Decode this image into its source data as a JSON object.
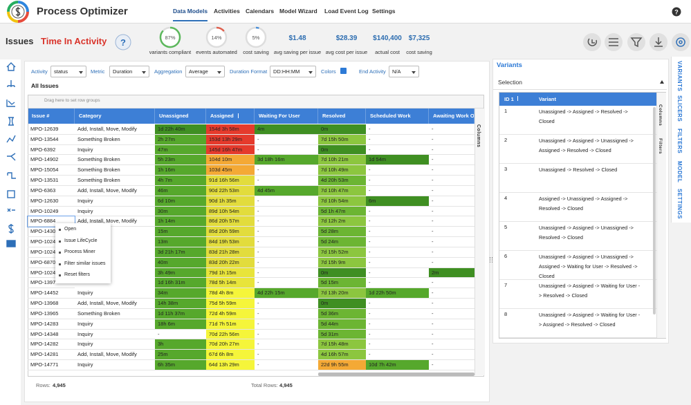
{
  "nav": {
    "app_title": "Process Optimizer",
    "items": [
      "Data Models",
      "Activities",
      "Calendars",
      "Model Wizard",
      "Load Event Log",
      "Settings"
    ]
  },
  "header": {
    "page": "Issues",
    "view": "Time In Activity",
    "gauges": [
      {
        "value": 87,
        "value_label": "87%",
        "label": "variants compliant",
        "color": "#5cb85c"
      },
      {
        "value": 14,
        "value_label": "14%",
        "label": "events automated",
        "color": "#e0604e"
      },
      {
        "value": 5,
        "value_label": "5%",
        "label": "cost saving",
        "color": "#4a8fd8"
      }
    ],
    "kpis": [
      {
        "value": "$1.48",
        "label": "avg saving per issue"
      },
      {
        "value": "$28.39",
        "label": "avg cost per issue"
      },
      {
        "value": "$140,400",
        "label": "actual cost"
      },
      {
        "value": "$7,325",
        "label": "cost saving"
      }
    ]
  },
  "controls": [
    {
      "label": "Activity",
      "value": "status"
    },
    {
      "label": "Metric",
      "value": "Duration"
    },
    {
      "label": "Aggregation",
      "value": "Average"
    },
    {
      "label": "Duration Format",
      "value": "DD:HH:MM"
    },
    {
      "label": "Colors",
      "checked": true
    },
    {
      "label": "End Activity",
      "value": "N/A"
    }
  ],
  "table": {
    "title": "All Issues",
    "group_hint": "Drag here to set row groups",
    "side_tab": "Columns",
    "columns": [
      "Issue #",
      "Category",
      "Unassigned",
      "Assigned",
      "Waiting For User",
      "Resolved",
      "Scheduled Work",
      "Awaiting Work Ord"
    ],
    "rows": [
      [
        "MPO-12639",
        "Add, Install, Move, Modify",
        {
          "text": "1d 22h 40m",
          "color": "#3f8f22"
        },
        {
          "text": "154d 3h 58m",
          "color": "#e53a2c"
        },
        {
          "text": "4m",
          "color": "#3f8f22"
        },
        {
          "text": "0m",
          "color": "#3f8f22"
        },
        "-",
        "-"
      ],
      [
        "MPO-13544",
        "Something Broken",
        {
          "text": "2h 27m",
          "color": "#56a82c"
        },
        {
          "text": "153d 13h 29m",
          "color": "#e53a2c"
        },
        "-",
        {
          "text": "7d 15h 50m",
          "color": "#8cc63f"
        },
        "-",
        "-"
      ],
      [
        "MPO-6392",
        "Inquiry",
        {
          "text": "47m",
          "color": "#56a82c"
        },
        {
          "text": "145d 16h 47m",
          "color": "#e53a2c"
        },
        "-",
        {
          "text": "0m",
          "color": "#3f8f22"
        },
        "-",
        "-"
      ],
      [
        "MPO-14902",
        "Something Broken",
        {
          "text": "5h 23m",
          "color": "#56a82c"
        },
        {
          "text": "104d 10m",
          "color": "#f4a935"
        },
        {
          "text": "3d 18h 16m",
          "color": "#56a82c"
        },
        {
          "text": "7d 10h 21m",
          "color": "#8cc63f"
        },
        {
          "text": "1d 54m",
          "color": "#3f8f22"
        },
        "-"
      ],
      [
        "MPO-15054",
        "Something Broken",
        {
          "text": "1h 16m",
          "color": "#56a82c"
        },
        {
          "text": "103d 45m",
          "color": "#f4a935"
        },
        "-",
        {
          "text": "7d 10h 49m",
          "color": "#8cc63f"
        },
        "-",
        "-"
      ],
      [
        "MPO-13531",
        "Something Broken",
        {
          "text": "4h 7m",
          "color": "#56a82c"
        },
        {
          "text": "91d 16h 56m",
          "color": "#e2dc3c"
        },
        "-",
        {
          "text": "4d 20h 53m",
          "color": "#6cb533"
        },
        "-",
        "-"
      ],
      [
        "MPO-6363",
        "Add, Install, Move, Modify",
        {
          "text": "46m",
          "color": "#56a82c"
        },
        {
          "text": "90d 22h 53m",
          "color": "#e2dc3c"
        },
        {
          "text": "4d 45m",
          "color": "#56a82c"
        },
        {
          "text": "7d 10h 47m",
          "color": "#8cc63f"
        },
        "-",
        "-"
      ],
      [
        "MPO-12630",
        "Inquiry",
        {
          "text": "6d 10m",
          "color": "#56a82c"
        },
        {
          "text": "90d 1h 35m",
          "color": "#e2dc3c"
        },
        "-",
        {
          "text": "7d 10h 54m",
          "color": "#8cc63f"
        },
        {
          "text": "6m",
          "color": "#3f8f22"
        },
        "-"
      ],
      [
        "MPO-10249",
        "Inquiry",
        {
          "text": "30m",
          "color": "#56a82c"
        },
        {
          "text": "89d 10h 54m",
          "color": "#e2dc3c"
        },
        "-",
        {
          "text": "5d 1h 47m",
          "color": "#6cb533"
        },
        "-",
        "-"
      ],
      [
        "MPO-6884",
        "Add, Install, Move, Modify",
        {
          "text": "1h 14m",
          "color": "#56a82c"
        },
        {
          "text": "86d 20h 57m",
          "color": "#e2dc3c"
        },
        "-",
        {
          "text": "7d 12h 2m",
          "color": "#8cc63f"
        },
        "-",
        "-"
      ],
      [
        "MPO-1430",
        null,
        {
          "text": "15m",
          "color": "#56a82c"
        },
        {
          "text": "85d 20h 59m",
          "color": "#e2dc3c"
        },
        "-",
        {
          "text": "5d 28m",
          "color": "#6cb533"
        },
        "-",
        "-"
      ],
      [
        "MPO-1024",
        null,
        {
          "text": "13m",
          "color": "#56a82c"
        },
        {
          "text": "84d 19h 53m",
          "color": "#e2dc3c"
        },
        "-",
        {
          "text": "5d 24m",
          "color": "#6cb533"
        },
        "-",
        "-"
      ],
      [
        "MPO-1024",
        null,
        {
          "text": "3d 21h 17m",
          "color": "#56a82c"
        },
        {
          "text": "83d 21h 28m",
          "color": "#e2dc3c"
        },
        "-",
        {
          "text": "7d 15h 52m",
          "color": "#8cc63f"
        },
        "-",
        "-"
      ],
      [
        "MPO-6870",
        null,
        {
          "text": "40m",
          "color": "#56a82c"
        },
        {
          "text": "83d 20h 22m",
          "color": "#e2dc3c"
        },
        "-",
        {
          "text": "7d 15h 9m",
          "color": "#8cc63f"
        },
        "-",
        "-"
      ],
      [
        "MPO-1024",
        null,
        {
          "text": "3h 49m",
          "color": "#56a82c"
        },
        {
          "text": "79d 1h 15m",
          "color": "#e8e43a"
        },
        "-",
        {
          "text": "0m",
          "color": "#3f8f22"
        },
        "-",
        {
          "text": "2m",
          "color": "#3f8f22"
        }
      ],
      [
        "MPO-1397",
        null,
        {
          "text": "1d 16h 31m",
          "color": "#56a82c"
        },
        {
          "text": "78d 5h 14m",
          "color": "#e8e43a"
        },
        "-",
        {
          "text": "5d 15m",
          "color": "#6cb533"
        },
        "-",
        "-"
      ],
      [
        "MPO-14452",
        "Inquiry",
        {
          "text": "34m",
          "color": "#56a82c"
        },
        {
          "text": "78d 4h 8m",
          "color": "#f5f53a"
        },
        {
          "text": "4d 22h 15m",
          "color": "#56a82c"
        },
        {
          "text": "7d 13h 20m",
          "color": "#8cc63f"
        },
        {
          "text": "1d 22h 50m",
          "color": "#56a82c"
        },
        "-"
      ],
      [
        "MPO-13968",
        "Add, Install, Move, Modify",
        {
          "text": "14h 38m",
          "color": "#56a82c"
        },
        {
          "text": "75d 5h 59m",
          "color": "#f5f53a"
        },
        "-",
        {
          "text": "0m",
          "color": "#3f8f22"
        },
        "-",
        "-"
      ],
      [
        "MPO-13965",
        "Something Broken",
        {
          "text": "1d 11h 37m",
          "color": "#56a82c"
        },
        {
          "text": "72d 4h 59m",
          "color": "#f5f53a"
        },
        "-",
        {
          "text": "5d 36m",
          "color": "#6cb533"
        },
        "-",
        "-"
      ],
      [
        "MPO-14283",
        "Inquiry",
        {
          "text": "18h 6m",
          "color": "#56a82c"
        },
        {
          "text": "71d 7h 51m",
          "color": "#f5f53a"
        },
        "-",
        {
          "text": "5d 44m",
          "color": "#6cb533"
        },
        "-",
        "-"
      ],
      [
        "MPO-14348",
        "Inquiry",
        "-",
        {
          "text": "70d 22h 56m",
          "color": "#f5f53a"
        },
        "-",
        {
          "text": "5d 31m",
          "color": "#6cb533"
        },
        "-",
        "-"
      ],
      [
        "MPO-14282",
        "Inquiry",
        {
          "text": "3h",
          "color": "#56a82c"
        },
        {
          "text": "70d 20h 27m",
          "color": "#f5f53a"
        },
        "-",
        {
          "text": "7d 15h 48m",
          "color": "#8cc63f"
        },
        "-",
        "-"
      ],
      [
        "MPO-14281",
        "Add, Install, Move, Modify",
        {
          "text": "25m",
          "color": "#56a82c"
        },
        {
          "text": "67d 6h 8m",
          "color": "#f5f53a"
        },
        "-",
        {
          "text": "4d 16h 57m",
          "color": "#8cc63f"
        },
        "-",
        "-"
      ],
      [
        "MPO-14771",
        "Inquiry",
        {
          "text": "6h 35m",
          "color": "#56a82c"
        },
        {
          "text": "64d 13h 29m",
          "color": "#f5f53a"
        },
        "-",
        {
          "text": "22d 9h 55m",
          "color": "#f4a935"
        },
        {
          "text": "10d 7h 42m",
          "color": "#56a82c"
        },
        "-"
      ]
    ],
    "footer": {
      "rows_label": "Rows:",
      "rows": "4,945",
      "total_label": "Total Rows:",
      "total": "4,945"
    }
  },
  "context_menu": [
    "Open",
    "Issue LifeCycle",
    "Process Miner",
    "Filter similar issues",
    "Reset filters"
  ],
  "variants": {
    "title": "Variants",
    "selection": "Selection",
    "columns": [
      "ID 1",
      "Variant"
    ],
    "side_tabs": [
      "Columns",
      "Filters"
    ],
    "rows": [
      [
        "1",
        "Unassigned -> Assigned -> Resolved -> Closed"
      ],
      [
        "2",
        "Unassigned -> Assigned -> Unassigned -> Assigned -> Resolved -> Closed"
      ],
      [
        "3",
        "Unassigned -> Resolved -> Closed"
      ],
      [
        "4",
        "Assigned -> Unassigned -> Assigned -> Resolved -> Closed"
      ],
      [
        "5",
        "Unassigned -> Assigned -> Unassigned -> Resolved -> Closed"
      ],
      [
        "6",
        "Unassigned -> Assigned -> Unassigned -> Assigned -> Waiting for User -> Resolved -> Closed"
      ],
      [
        "7",
        "Unassigned -> Assigned -> Waiting for User -> Resolved -> Closed"
      ],
      [
        "8",
        "Unassigned -> Assigned -> Waiting for User -> Assigned -> Resolved -> Closed"
      ]
    ]
  },
  "side_tabs": [
    "VARIANTS",
    "SLICERS",
    "FILTERS",
    "MODEL",
    "SETTINGS"
  ]
}
